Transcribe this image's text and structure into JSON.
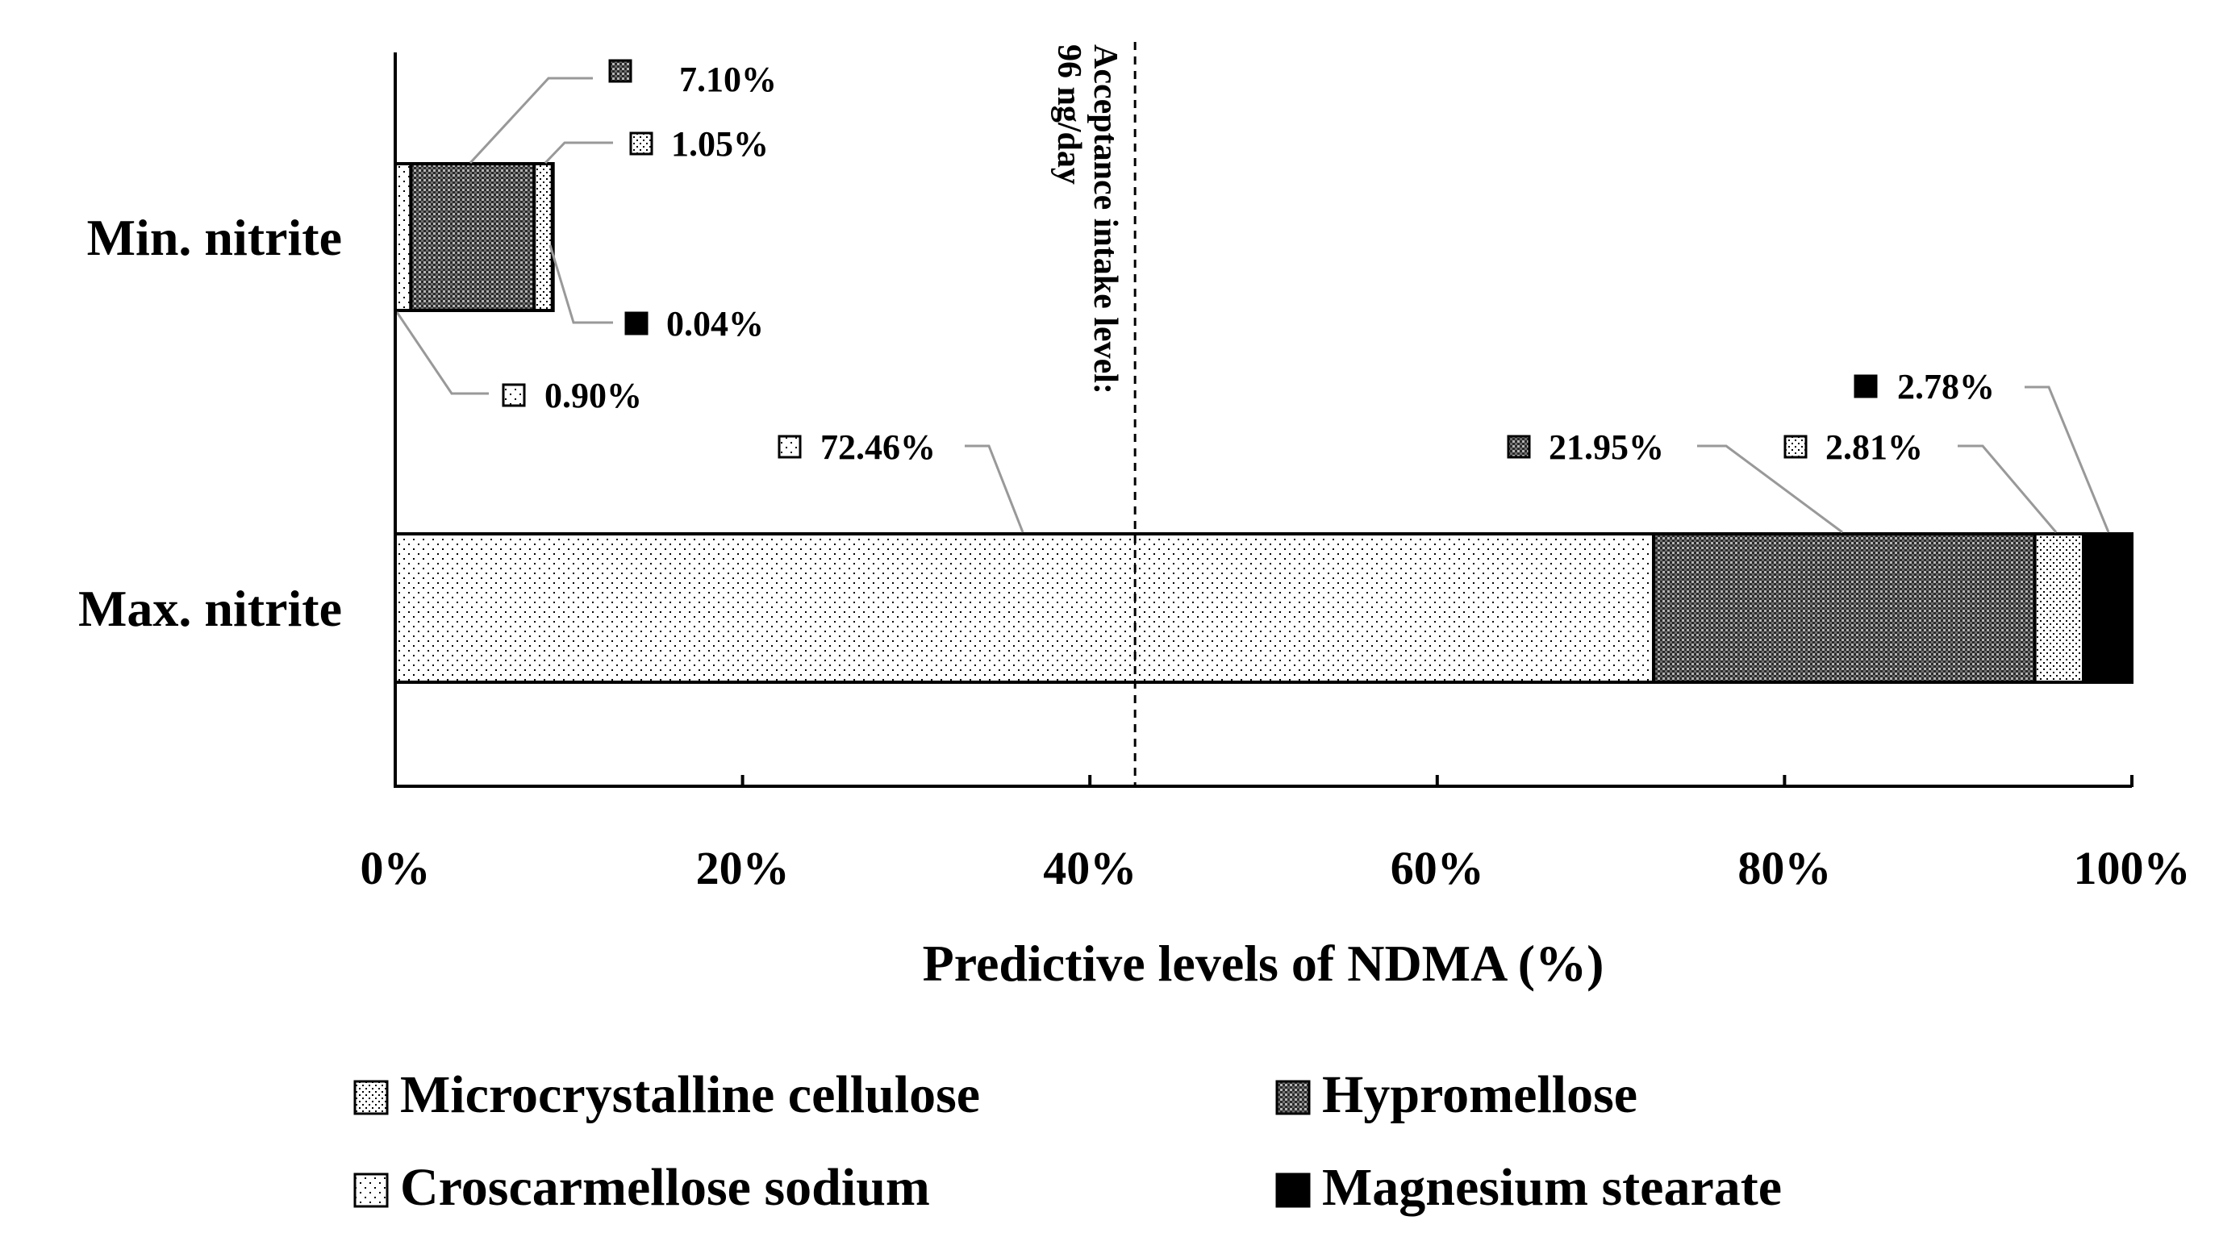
{
  "chart_data": {
    "type": "bar",
    "orientation": "horizontal",
    "stacked": true,
    "normalized": true,
    "xlabel": "Predictive levels of NDMA (%)",
    "xlim": [
      0,
      100
    ],
    "xticks": [
      "0%",
      "20%",
      "40%",
      "60%",
      "80%",
      "100%"
    ],
    "categories": [
      "Min. nitrite",
      "Max. nitrite"
    ],
    "series": [
      {
        "name": "Croscarmellose sodium",
        "pattern": "sparse-dots",
        "values": [
          0.9,
          72.46
        ],
        "labels": [
          "0.90%",
          "72.46%"
        ]
      },
      {
        "name": "Hypromellose",
        "pattern": "dense-crosshatch",
        "values": [
          7.1,
          21.95
        ],
        "labels": [
          "7.10%",
          "21.95%"
        ]
      },
      {
        "name": "Microcrystalline cellulose",
        "pattern": "dots",
        "values": [
          1.05,
          2.81
        ],
        "labels": [
          "1.05%",
          "2.81%"
        ]
      },
      {
        "name": "Magnesium stearate",
        "pattern": "solid",
        "values": [
          0.04,
          2.78
        ],
        "labels": [
          "0.04%",
          "2.78%"
        ]
      }
    ],
    "reference_line": {
      "value": 42.6,
      "style": "dashed",
      "label_line1": "Acceptance intake level:",
      "label_line2": "96 ng/day"
    },
    "legend": {
      "placement": "bottom",
      "items": [
        "Microcrystalline cellulose",
        "Hypromellose",
        "Croscarmellose sodium",
        "Magnesium stearate"
      ]
    },
    "colors": {
      "bar_border": "#000000",
      "leader_line": "#999999",
      "solid": "#000000"
    }
  }
}
